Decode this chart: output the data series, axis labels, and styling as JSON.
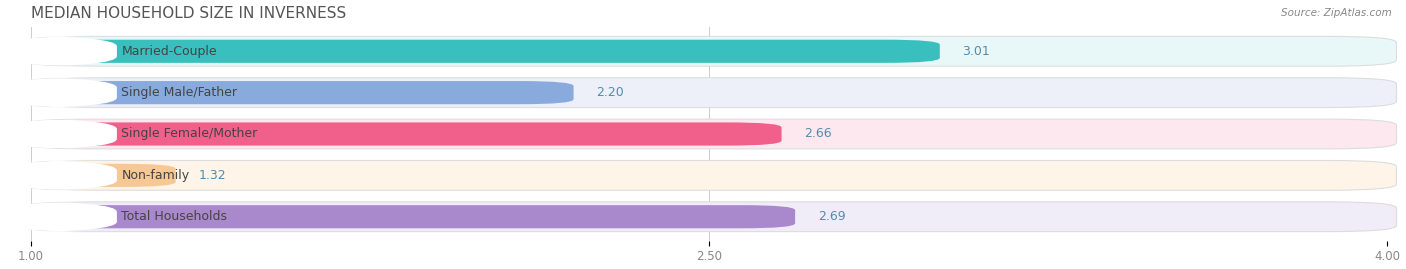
{
  "title": "MEDIAN HOUSEHOLD SIZE IN INVERNESS",
  "source": "Source: ZipAtlas.com",
  "categories": [
    "Married-Couple",
    "Single Male/Father",
    "Single Female/Mother",
    "Non-family",
    "Total Households"
  ],
  "values": [
    3.01,
    2.2,
    2.66,
    1.32,
    2.69
  ],
  "bar_colors": [
    "#3abfbf",
    "#88aadd",
    "#f0608a",
    "#f5c896",
    "#aa88cc"
  ],
  "bar_bg_colors": [
    "#e8f8f8",
    "#edf0f8",
    "#fde8ef",
    "#fef4e8",
    "#f0ecf8"
  ],
  "row_border_color": "#dddddd",
  "xlim": [
    1.0,
    4.0
  ],
  "xticks": [
    1.0,
    2.5,
    4.0
  ],
  "title_fontsize": 11,
  "label_fontsize": 9,
  "value_fontsize": 9,
  "background_color": "#ffffff",
  "tick_label_color": "#888888",
  "value_color": "#558baa",
  "title_color": "#555555"
}
